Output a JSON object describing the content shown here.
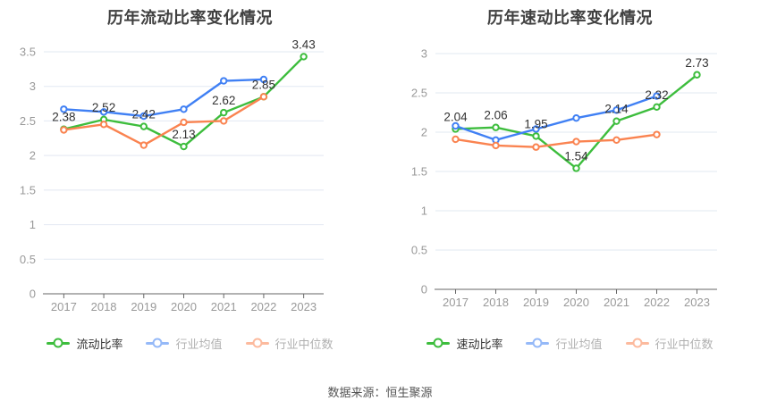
{
  "source_note": "数据来源：恒生聚源",
  "chart_data": [
    {
      "type": "line",
      "title": "历年流动比率变化情况",
      "categories": [
        "2017",
        "2018",
        "2019",
        "2020",
        "2021",
        "2022",
        "2023"
      ],
      "series": [
        {
          "name": "流动比率",
          "color": "#3dbd3d",
          "values": [
            2.38,
            2.52,
            2.42,
            2.13,
            2.62,
            2.85,
            3.43
          ],
          "show_labels": true
        },
        {
          "name": "行业均值",
          "color": "#4080f4",
          "values": [
            2.67,
            2.63,
            2.57,
            2.67,
            3.08,
            3.1
          ],
          "show_labels": false
        },
        {
          "name": "行业中位数",
          "color": "#fa8350",
          "values": [
            2.37,
            2.45,
            2.15,
            2.48,
            2.5,
            2.85
          ],
          "show_labels": false
        }
      ],
      "ylim": [
        0,
        3.5
      ],
      "yticks": [
        0,
        0.5,
        1,
        1.5,
        2,
        2.5,
        3,
        3.5
      ],
      "xlabel": "",
      "ylabel": "",
      "grid": true,
      "legend_position": "bottom",
      "colors": {
        "grid_line": "#e2e8f2",
        "axis_line": "#666666",
        "tick_label": "#999999",
        "value_label": "#333333"
      }
    },
    {
      "type": "line",
      "title": "历年速动比率变化情况",
      "categories": [
        "2017",
        "2018",
        "2019",
        "2020",
        "2021",
        "2022",
        "2023"
      ],
      "series": [
        {
          "name": "速动比率",
          "color": "#3dbd3d",
          "values": [
            2.04,
            2.06,
            1.95,
            1.54,
            2.14,
            2.32,
            2.73
          ],
          "show_labels": true
        },
        {
          "name": "行业均值",
          "color": "#4080f4",
          "values": [
            2.08,
            1.9,
            2.04,
            2.18,
            2.28,
            2.46
          ],
          "show_labels": false
        },
        {
          "name": "行业中位数",
          "color": "#fa8350",
          "values": [
            1.91,
            1.83,
            1.81,
            1.88,
            1.9,
            1.97
          ],
          "show_labels": false
        }
      ],
      "ylim": [
        0,
        3
      ],
      "yticks": [
        0,
        0.5,
        1,
        1.5,
        2,
        2.5,
        3
      ],
      "xlabel": "",
      "ylabel": "",
      "grid": true,
      "legend_position": "bottom",
      "colors": {
        "grid_line": "#e2e8f2",
        "axis_line": "#666666",
        "tick_label": "#999999",
        "value_label": "#333333"
      }
    }
  ]
}
